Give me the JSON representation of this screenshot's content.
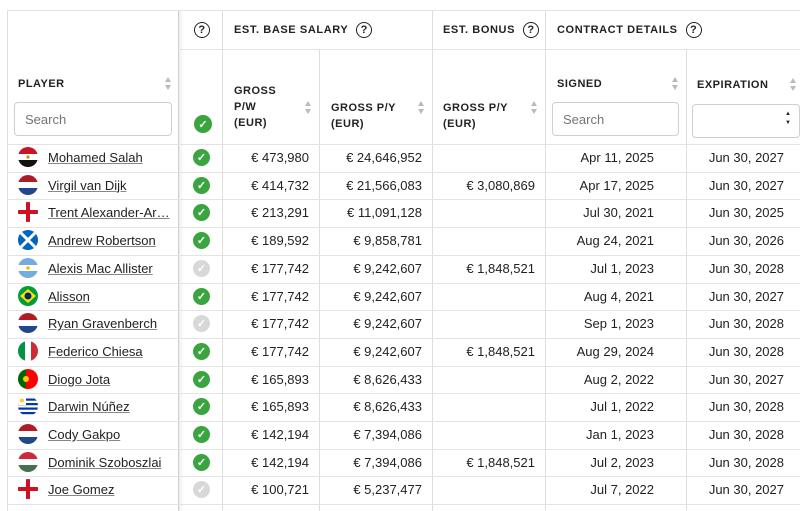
{
  "header": {
    "salary_group": "EST. BASE SALARY",
    "bonus_group": "EST. BONUS",
    "contract_group": "CONTRACT DETAILS",
    "help_glyph": "?",
    "player_col": "PLAYER",
    "gross_pw_line1": "GROSS",
    "gross_pw_line2": "P/W",
    "gross_pw_line3": "(EUR)",
    "gross_py_line1": "GROSS P/Y",
    "gross_py_line2": "(EUR)",
    "bonus_py_line1": "GROSS P/Y",
    "bonus_py_line2": "(EUR)",
    "signed_col": "SIGNED",
    "expiration_col": "EXPIRATION"
  },
  "filters": {
    "player_placeholder": "Search",
    "signed_placeholder": "Search",
    "expiration_selected": ""
  },
  "colors": {
    "check_on": "#3aa53f",
    "check_off": "#d8d8d8"
  },
  "rows": [
    {
      "name": "Mohamed Salah",
      "flag": "egypt",
      "active": true,
      "pw": "€ 473,980",
      "py": "€ 24,646,952",
      "bonus": "",
      "signed": "Apr 11, 2025",
      "expires": "Jun 30, 2027"
    },
    {
      "name": "Virgil van Dijk",
      "flag": "netherlands",
      "active": true,
      "pw": "€ 414,732",
      "py": "€ 21,566,083",
      "bonus": "€ 3,080,869",
      "signed": "Apr 17, 2025",
      "expires": "Jun 30, 2027"
    },
    {
      "name": "Trent Alexander-Ar…",
      "flag": "england",
      "active": true,
      "pw": "€ 213,291",
      "py": "€ 11,091,128",
      "bonus": "",
      "signed": "Jul 30, 2021",
      "expires": "Jun 30, 2025"
    },
    {
      "name": "Andrew Robertson",
      "flag": "scotland",
      "active": true,
      "pw": "€ 189,592",
      "py": "€ 9,858,781",
      "bonus": "",
      "signed": "Aug 24, 2021",
      "expires": "Jun 30, 2026"
    },
    {
      "name": "Alexis Mac Allister",
      "flag": "argentina",
      "active": false,
      "pw": "€ 177,742",
      "py": "€ 9,242,607",
      "bonus": "€ 1,848,521",
      "signed": "Jul 1, 2023",
      "expires": "Jun 30, 2028"
    },
    {
      "name": "Alisson",
      "flag": "brazil",
      "active": true,
      "pw": "€ 177,742",
      "py": "€ 9,242,607",
      "bonus": "",
      "signed": "Aug 4, 2021",
      "expires": "Jun 30, 2027"
    },
    {
      "name": "Ryan Gravenberch",
      "flag": "netherlands",
      "active": false,
      "pw": "€ 177,742",
      "py": "€ 9,242,607",
      "bonus": "",
      "signed": "Sep 1, 2023",
      "expires": "Jun 30, 2028"
    },
    {
      "name": "Federico Chiesa",
      "flag": "italy",
      "active": true,
      "pw": "€ 177,742",
      "py": "€ 9,242,607",
      "bonus": "€ 1,848,521",
      "signed": "Aug 29, 2024",
      "expires": "Jun 30, 2028"
    },
    {
      "name": "Diogo Jota",
      "flag": "portugal",
      "active": true,
      "pw": "€ 165,893",
      "py": "€ 8,626,433",
      "bonus": "",
      "signed": "Aug 2, 2022",
      "expires": "Jun 30, 2027"
    },
    {
      "name": "Darwin Núñez",
      "flag": "uruguay",
      "active": true,
      "pw": "€ 165,893",
      "py": "€ 8,626,433",
      "bonus": "",
      "signed": "Jul 1, 2022",
      "expires": "Jun 30, 2028"
    },
    {
      "name": "Cody Gakpo",
      "flag": "netherlands",
      "active": true,
      "pw": "€ 142,194",
      "py": "€ 7,394,086",
      "bonus": "",
      "signed": "Jan 1, 2023",
      "expires": "Jun 30, 2028"
    },
    {
      "name": "Dominik Szoboszlai",
      "flag": "hungary",
      "active": true,
      "pw": "€ 142,194",
      "py": "€ 7,394,086",
      "bonus": "€ 1,848,521",
      "signed": "Jul 2, 2023",
      "expires": "Jun 30, 2028"
    },
    {
      "name": "Joe Gomez",
      "flag": "england",
      "active": false,
      "pw": "€ 100,721",
      "py": "€ 5,237,477",
      "bonus": "",
      "signed": "Jul 7, 2022",
      "expires": "Jun 30, 2027"
    }
  ]
}
